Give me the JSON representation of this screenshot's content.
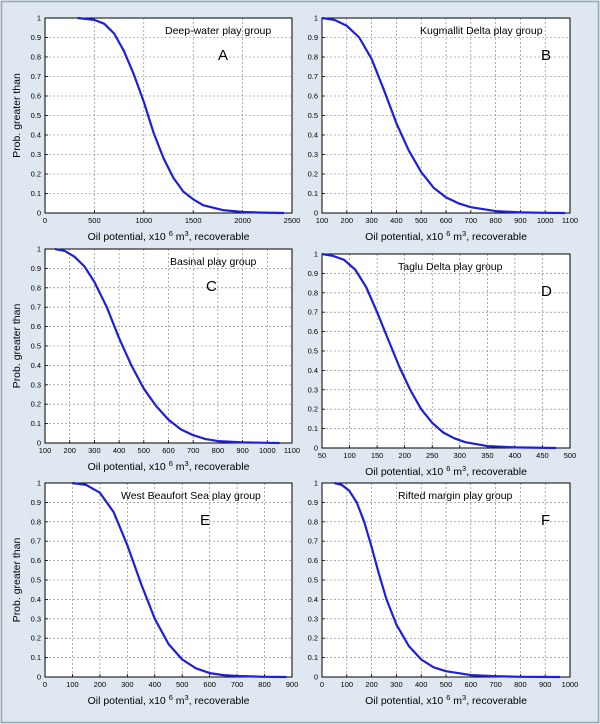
{
  "figure": {
    "background": "#dfe8f0",
    "frame_color": "#9aa6b2",
    "curve_color": "#1f1fd6",
    "grid_color": "#7a7a7a"
  },
  "chart_data": [
    {
      "type": "line",
      "panel_letter": "A",
      "title": "Deep-water play group",
      "xlabel_prefix": "Oil potential, x10",
      "xlabel_sup": "6",
      "xlabel_unit": " m",
      "xlabel_unit_sup": "3",
      "xlabel_suffix": ", recoverable",
      "ylabel": "Prob. greater than",
      "xlim": [
        0,
        2500
      ],
      "ylim": [
        0,
        1
      ],
      "xticks": [
        0,
        500,
        1000,
        1500,
        2000,
        2500
      ],
      "yticks": [
        0,
        0.1,
        0.2,
        0.3,
        0.4,
        0.5,
        0.6,
        0.7,
        0.8,
        0.9,
        1
      ],
      "grid": true,
      "series": [
        {
          "x": [
            330,
            500,
            600,
            700,
            800,
            900,
            1000,
            1100,
            1200,
            1300,
            1400,
            1500,
            1600,
            1800,
            2000,
            2200,
            2420
          ],
          "y": [
            1.0,
            0.99,
            0.97,
            0.92,
            0.83,
            0.71,
            0.57,
            0.41,
            0.28,
            0.18,
            0.11,
            0.07,
            0.04,
            0.015,
            0.005,
            0.002,
            0.0
          ]
        }
      ]
    },
    {
      "type": "line",
      "panel_letter": "B",
      "title": "Kugmallit Delta play group",
      "xlabel_prefix": "Oil potential, x10",
      "xlabel_sup": "6",
      "xlabel_unit": " m",
      "xlabel_unit_sup": "3",
      "xlabel_suffix": ", recoverable",
      "ylabel": "",
      "xlim": [
        100,
        1100
      ],
      "ylim": [
        0,
        1
      ],
      "xticks": [
        100,
        200,
        300,
        400,
        500,
        600,
        700,
        800,
        900,
        1000,
        1100
      ],
      "yticks": [
        0,
        0.1,
        0.2,
        0.3,
        0.4,
        0.5,
        0.6,
        0.7,
        0.8,
        0.9,
        1
      ],
      "grid": true,
      "series": [
        {
          "x": [
            100,
            150,
            200,
            250,
            300,
            350,
            400,
            450,
            500,
            550,
            600,
            650,
            700,
            800,
            900,
            1000,
            1080
          ],
          "y": [
            1.0,
            0.99,
            0.96,
            0.9,
            0.79,
            0.63,
            0.46,
            0.32,
            0.21,
            0.13,
            0.08,
            0.05,
            0.03,
            0.01,
            0.003,
            0.001,
            0.0
          ]
        }
      ]
    },
    {
      "type": "line",
      "panel_letter": "C",
      "title": "Basinal play group",
      "xlabel_prefix": "Oil potential, x10",
      "xlabel_sup": "6",
      "xlabel_unit": " m",
      "xlabel_unit_sup": "3",
      "xlabel_suffix": ", recoverable",
      "ylabel": "Prob. greater than",
      "xlim": [
        100,
        1100
      ],
      "ylim": [
        0,
        1
      ],
      "xticks": [
        100,
        200,
        300,
        400,
        500,
        600,
        700,
        800,
        900,
        1000,
        1100
      ],
      "yticks": [
        0,
        0.1,
        0.2,
        0.3,
        0.4,
        0.5,
        0.6,
        0.7,
        0.8,
        0.9,
        1
      ],
      "grid": true,
      "series": [
        {
          "x": [
            140,
            180,
            220,
            260,
            300,
            350,
            400,
            450,
            500,
            550,
            600,
            650,
            700,
            750,
            800,
            900,
            1000,
            1050
          ],
          "y": [
            1.0,
            0.99,
            0.96,
            0.91,
            0.83,
            0.7,
            0.54,
            0.4,
            0.28,
            0.19,
            0.12,
            0.07,
            0.04,
            0.02,
            0.01,
            0.003,
            0.001,
            0.0
          ]
        }
      ]
    },
    {
      "type": "line",
      "panel_letter": "D",
      "title": "Taglu Delta play group",
      "xlabel_prefix": "Oil potential, x10",
      "xlabel_sup": "6",
      "xlabel_unit": " m",
      "xlabel_unit_sup": "3",
      "xlabel_suffix": ", recoverable",
      "ylabel": "",
      "xlim": [
        50,
        500
      ],
      "ylim": [
        0,
        1
      ],
      "xticks": [
        50,
        100,
        150,
        200,
        250,
        300,
        350,
        400,
        450,
        500
      ],
      "yticks": [
        0,
        0.1,
        0.2,
        0.3,
        0.4,
        0.5,
        0.6,
        0.7,
        0.8,
        0.9,
        1
      ],
      "grid": true,
      "series": [
        {
          "x": [
            50,
            70,
            90,
            110,
            130,
            150,
            170,
            190,
            210,
            230,
            250,
            270,
            290,
            310,
            350,
            400,
            475
          ],
          "y": [
            1.0,
            0.99,
            0.97,
            0.92,
            0.83,
            0.7,
            0.56,
            0.42,
            0.3,
            0.2,
            0.13,
            0.08,
            0.05,
            0.03,
            0.01,
            0.003,
            0.0
          ]
        }
      ]
    },
    {
      "type": "line",
      "panel_letter": "E",
      "title": "West Beaufort Sea play group",
      "xlabel_prefix": "Oil potential, x10",
      "xlabel_sup": "6",
      "xlabel_unit": " m",
      "xlabel_unit_sup": "3",
      "xlabel_suffix": ", recoverable",
      "ylabel": "Prob. greater than",
      "xlim": [
        0,
        900
      ],
      "ylim": [
        0,
        1
      ],
      "xticks": [
        0,
        100,
        200,
        300,
        400,
        500,
        600,
        700,
        800,
        900
      ],
      "yticks": [
        0,
        0.1,
        0.2,
        0.3,
        0.4,
        0.5,
        0.6,
        0.7,
        0.8,
        0.9,
        1
      ],
      "grid": true,
      "series": [
        {
          "x": [
            100,
            150,
            200,
            250,
            300,
            350,
            400,
            450,
            500,
            550,
            600,
            650,
            700,
            800,
            880
          ],
          "y": [
            1.0,
            0.99,
            0.95,
            0.85,
            0.68,
            0.48,
            0.3,
            0.17,
            0.09,
            0.045,
            0.02,
            0.01,
            0.005,
            0.001,
            0.0
          ]
        }
      ]
    },
    {
      "type": "line",
      "panel_letter": "F",
      "title": "Rifted margin play group",
      "xlabel_prefix": "Oil potential, x10",
      "xlabel_sup": "6",
      "xlabel_unit": " m",
      "xlabel_unit_sup": "3",
      "xlabel_suffix": ", recoverable",
      "ylabel": "",
      "xlim": [
        0,
        1000
      ],
      "ylim": [
        0,
        1
      ],
      "xticks": [
        0,
        100,
        200,
        300,
        400,
        500,
        600,
        700,
        800,
        900,
        1000
      ],
      "yticks": [
        0,
        0.1,
        0.2,
        0.3,
        0.4,
        0.5,
        0.6,
        0.7,
        0.8,
        0.9,
        1
      ],
      "grid": true,
      "series": [
        {
          "x": [
            50,
            80,
            110,
            140,
            170,
            200,
            230,
            260,
            300,
            350,
            400,
            450,
            500,
            600,
            700,
            800,
            960
          ],
          "y": [
            1.0,
            0.99,
            0.96,
            0.9,
            0.8,
            0.67,
            0.53,
            0.4,
            0.27,
            0.16,
            0.09,
            0.05,
            0.03,
            0.01,
            0.004,
            0.001,
            0.0
          ]
        }
      ]
    }
  ]
}
